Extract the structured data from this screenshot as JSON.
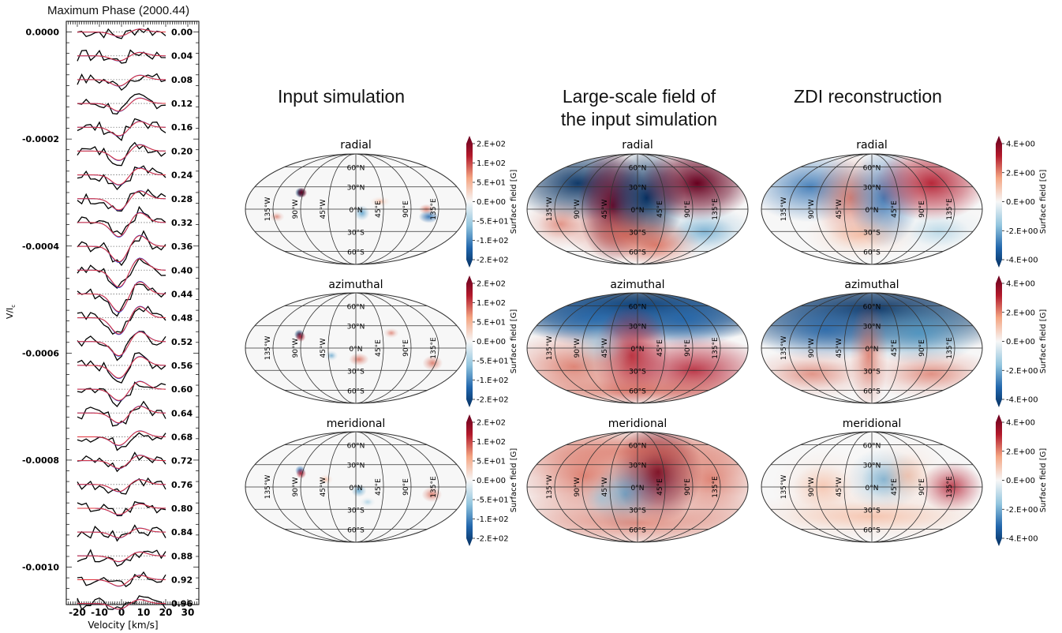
{
  "left_panel": {
    "title": "Maximum Phase (2000.44)",
    "chart_data": {
      "type": "line",
      "xlabel": "Velocity [km/s]",
      "ylabel": "V/I",
      "ylabel_sub": "c",
      "xlim": [
        -25,
        35
      ],
      "ylim": [
        -0.00107,
        2e-05
      ],
      "x_ticks": [
        -20,
        -10,
        0,
        10,
        20,
        30
      ],
      "x_tick_labels": [
        "-20",
        "-10",
        "0",
        "10",
        "20",
        "30"
      ],
      "y_ticks": [
        0.0,
        -0.0002,
        -0.0004,
        -0.0006,
        -0.0008,
        -0.001
      ],
      "y_tick_labels": [
        "0.0000",
        "-0.0002",
        "-0.0004",
        "-0.0006",
        "-0.0008",
        "-0.0010"
      ],
      "phases": [
        "0.00",
        "0.04",
        "0.08",
        "0.12",
        "0.16",
        "0.20",
        "0.24",
        "0.28",
        "0.32",
        "0.36",
        "0.40",
        "0.44",
        "0.48",
        "0.52",
        "0.56",
        "0.60",
        "0.64",
        "0.68",
        "0.72",
        "0.76",
        "0.80",
        "0.84",
        "0.88",
        "0.92",
        "0.96"
      ],
      "phase_offset_step": -4.45e-05,
      "profile_velocity_range": [
        -20,
        20
      ],
      "series": [
        {
          "color": "#000000"
        },
        {
          "color": "#1f3fd6"
        },
        {
          "color": "#e0303a"
        }
      ]
    }
  },
  "titles": {
    "input": "Input simulation",
    "large_1": "Large-scale field of",
    "large_2": "the input simulation",
    "zdi": "ZDI reconstruction"
  },
  "row_labels": [
    "radial",
    "azimuthal",
    "meridional"
  ],
  "map_grid": {
    "lat_labels": [
      "60°N",
      "30°N",
      "0°N",
      "30°S",
      "60°S"
    ],
    "lon_labels": [
      "135°W",
      "90°W",
      "45°W",
      "45°E",
      "90°E",
      "135°E"
    ]
  },
  "colorbar_input": {
    "label": "Surface field [G]",
    "ticks": [
      "2.E+02",
      "1.E+02",
      "5.E+01",
      "0.E+00",
      "-5.E+01",
      "-1.E+02",
      "-2.E+02"
    ]
  },
  "colorbar_zdi": {
    "label": "Surface field [G]",
    "ticks": [
      "4.E+00",
      "2.E+00",
      "0.E+00",
      "-2.E+00",
      "-4.E+00"
    ]
  },
  "colors": {
    "positive": "#b2182b",
    "negative": "#2166ac",
    "neutral": "#f7f7f7"
  }
}
